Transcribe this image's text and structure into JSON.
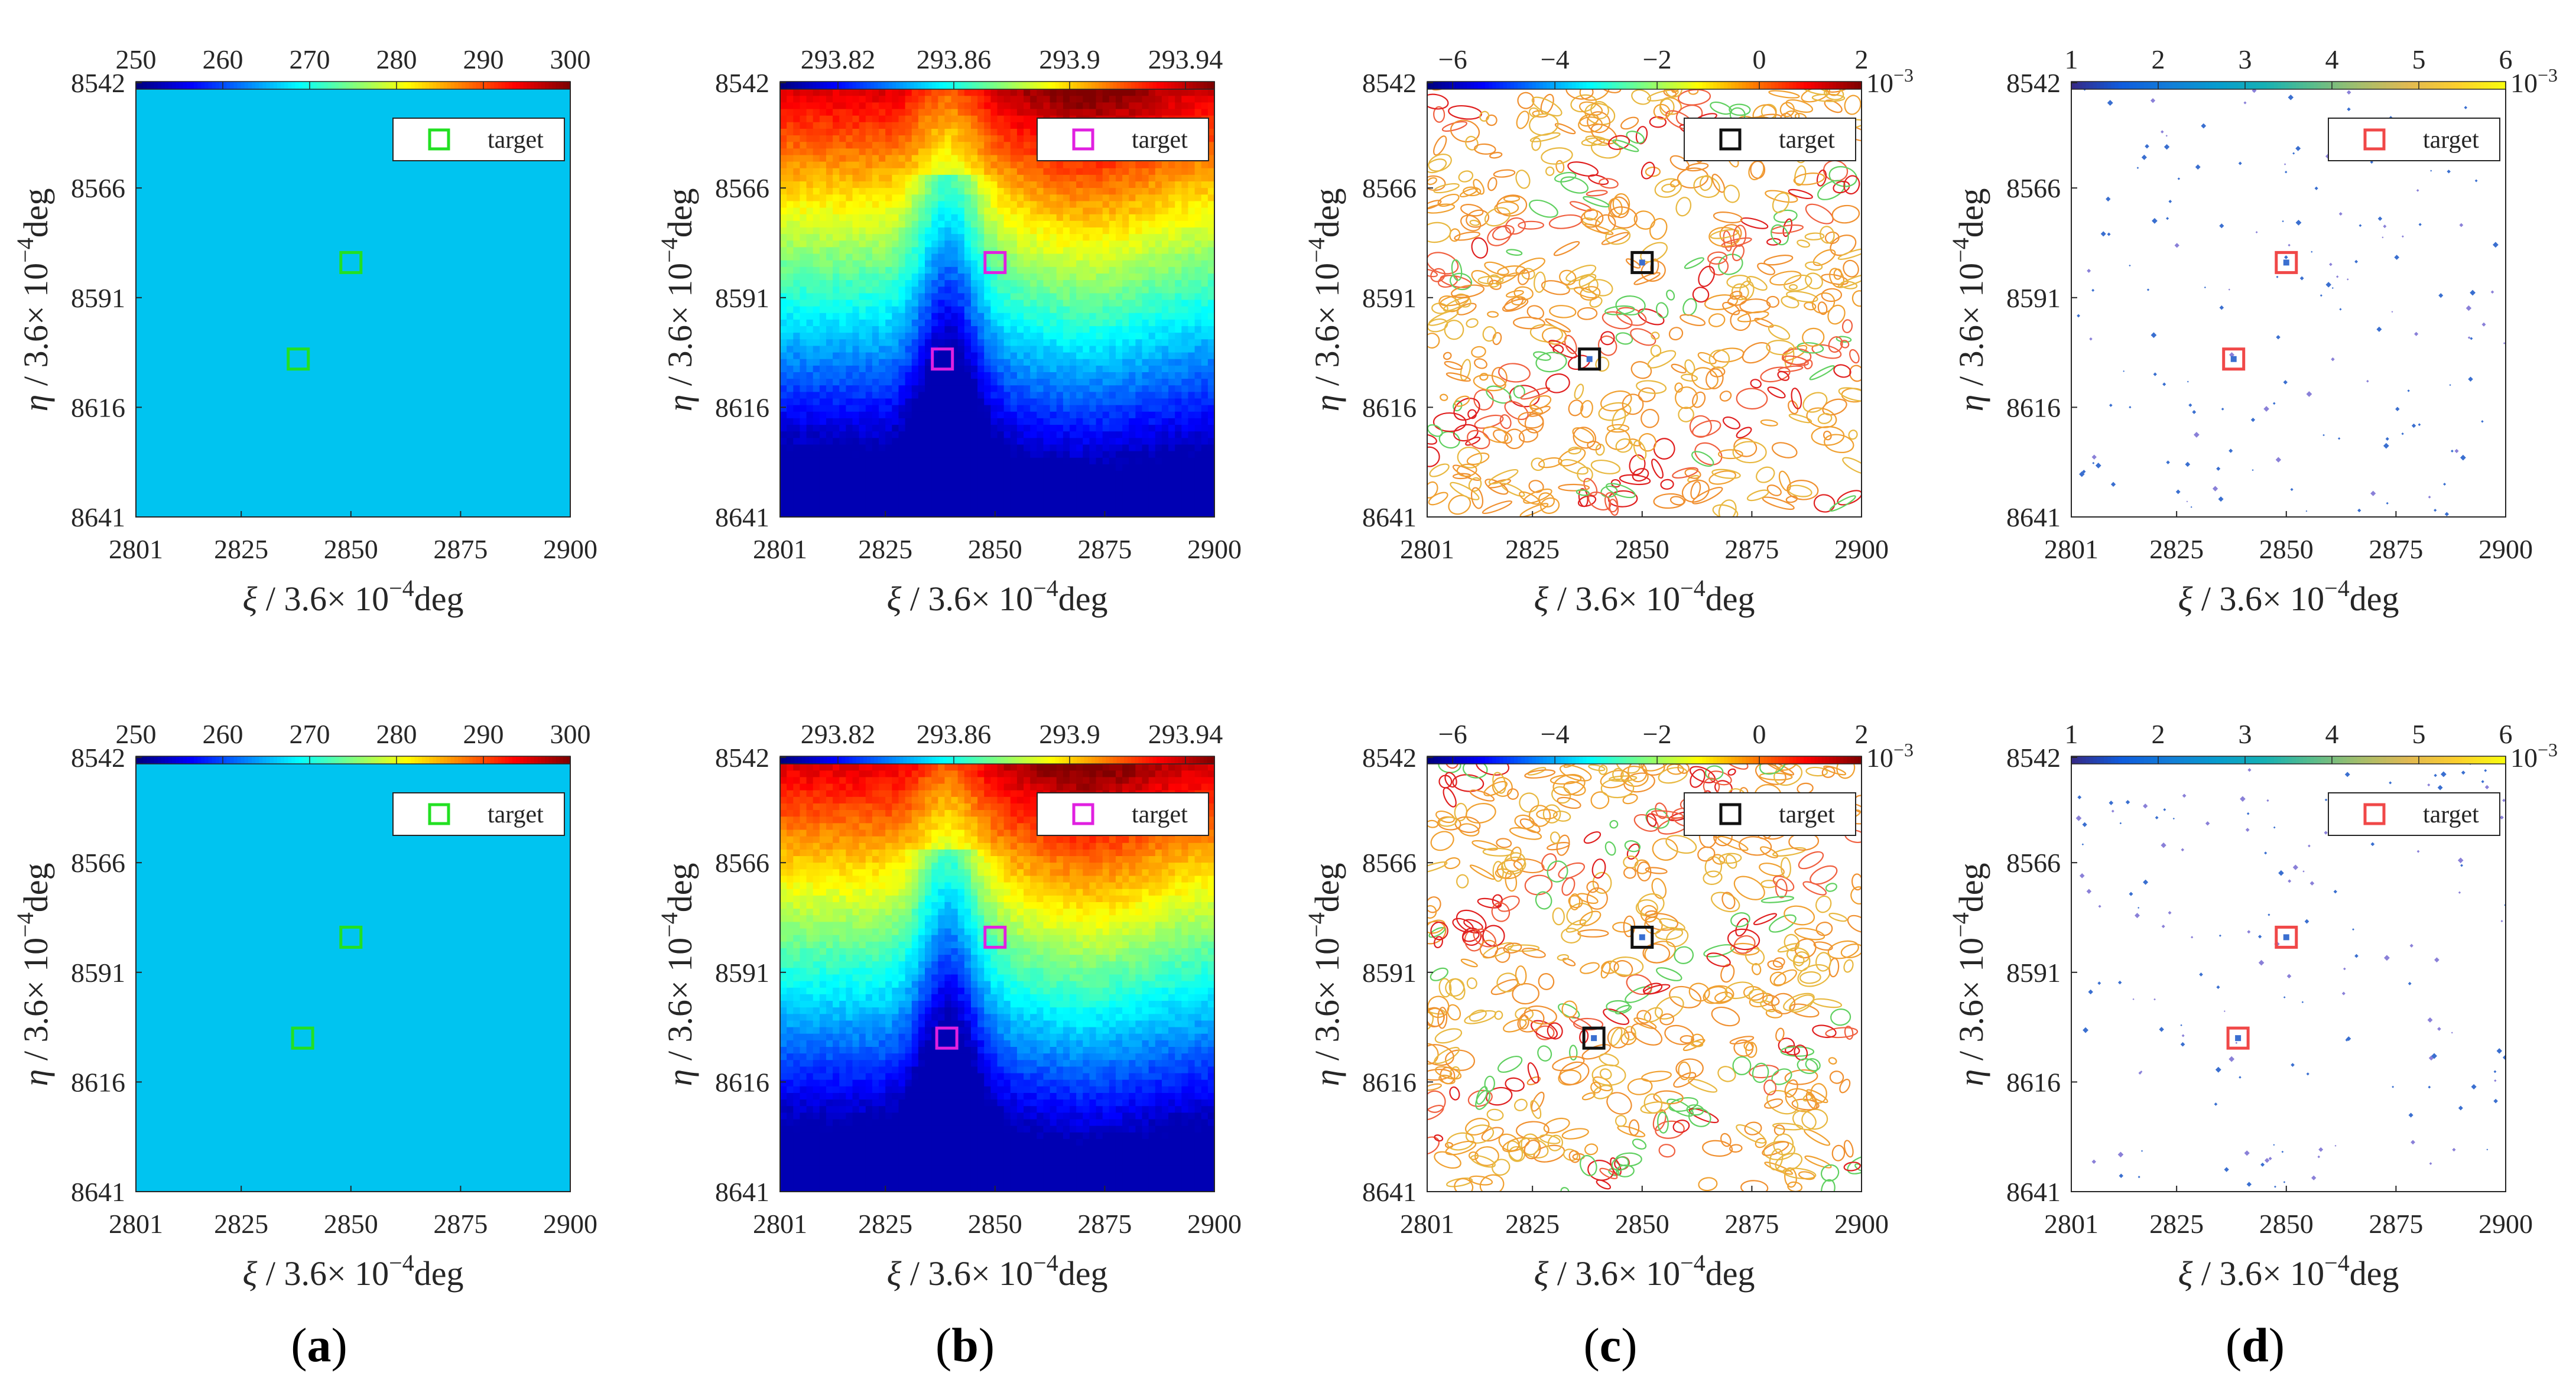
{
  "colors": {
    "uniform_field": "#00C4F0",
    "target_marker": {
      "a": "#22E022",
      "b": "#E020E0",
      "c": "#111111",
      "d": "#F04848"
    }
  },
  "chart_data": [
    {
      "id": "a1",
      "type": "heatmap",
      "field": "uniform",
      "colorbar_ticks": [
        "250",
        "260",
        "270",
        "280",
        "290",
        "300"
      ],
      "colorbar_range": [
        250,
        300
      ],
      "colorbar_exponent": "",
      "field_value": 273
    },
    {
      "id": "b1",
      "type": "heatmap",
      "field": "smooth-gradient",
      "colorbar_ticks": [
        "293.82",
        "293.86",
        "293.9",
        "293.94"
      ],
      "colorbar_range": [
        293.8,
        293.95
      ],
      "colorbar_exponent": ""
    },
    {
      "id": "c1",
      "type": "contour",
      "field": "contour",
      "colorbar_ticks": [
        "−6",
        "−4",
        "−2",
        "0",
        "2"
      ],
      "colorbar_range": [
        -6.5,
        2
      ],
      "colorbar_exponent": "10",
      "colorbar_exponent_power": "−3"
    },
    {
      "id": "d1",
      "type": "scatter",
      "field": "sparse-points",
      "colorbar_ticks": [
        "1",
        "2",
        "3",
        "4",
        "5",
        "6"
      ],
      "colorbar_range": [
        1,
        6
      ],
      "colorbar_exponent": "10",
      "colorbar_exponent_power": "−3"
    },
    {
      "id": "a2",
      "type": "heatmap",
      "field": "uniform",
      "colorbar_ticks": [
        "250",
        "260",
        "270",
        "280",
        "290",
        "300"
      ],
      "colorbar_range": [
        250,
        300
      ],
      "colorbar_exponent": "",
      "field_value": 273
    },
    {
      "id": "b2",
      "type": "heatmap",
      "field": "smooth-gradient",
      "colorbar_ticks": [
        "293.82",
        "293.86",
        "293.9",
        "293.94"
      ],
      "colorbar_range": [
        293.8,
        293.95
      ],
      "colorbar_exponent": ""
    },
    {
      "id": "c2",
      "type": "contour",
      "field": "contour",
      "colorbar_ticks": [
        "−6",
        "−4",
        "−2",
        "0",
        "2"
      ],
      "colorbar_range": [
        -6.5,
        2
      ],
      "colorbar_exponent": "10",
      "colorbar_exponent_power": "−3"
    },
    {
      "id": "d2",
      "type": "scatter",
      "field": "sparse-points",
      "colorbar_ticks": [
        "1",
        "2",
        "3",
        "4",
        "5",
        "6"
      ],
      "colorbar_range": [
        1,
        6
      ],
      "colorbar_exponent": "10",
      "colorbar_exponent_power": "−3"
    }
  ],
  "shared_axes": {
    "xlabel_symbol": "ξ",
    "ylabel_symbol": "η",
    "label_unit_prefix": " / 3.6× 10",
    "label_unit_power": "−4",
    "label_unit_suffix": "deg",
    "x_ticks": [
      "2801",
      "2825",
      "2850",
      "2875",
      "2900"
    ],
    "x_tick_values": [
      2801,
      2825,
      2850,
      2875,
      2900
    ],
    "x_range": [
      2801,
      2900
    ],
    "y_ticks": [
      "8542",
      "8566",
      "8591",
      "8616",
      "8641"
    ],
    "y_tick_values": [
      8542,
      8566,
      8591,
      8616,
      8641
    ],
    "y_range": [
      8542,
      8641
    ]
  },
  "targets": {
    "row1": [
      {
        "xi": 2850,
        "eta": 8583
      },
      {
        "xi": 2838,
        "eta": 8605
      }
    ],
    "row2": [
      {
        "xi": 2850,
        "eta": 8583
      },
      {
        "xi": 2839,
        "eta": 8606
      }
    ]
  },
  "legend": {
    "label": "target"
  },
  "panel_labels": [
    "a",
    "b",
    "c",
    "d"
  ]
}
